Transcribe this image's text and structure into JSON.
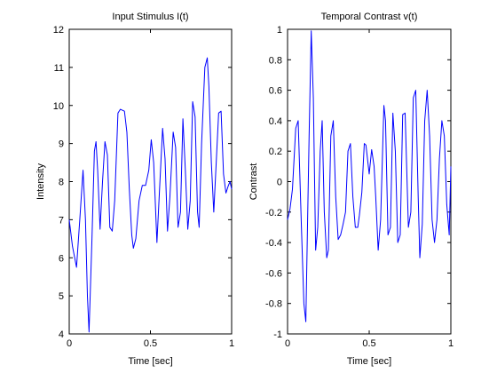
{
  "figure": {
    "background": "#ffffff",
    "line_color": "#0000ff"
  },
  "chart_data": [
    {
      "type": "line",
      "title": "Input Stimulus I(t)",
      "xlabel": "Time [sec]",
      "ylabel": "Intensity",
      "xlim": [
        0,
        1
      ],
      "ylim": [
        4,
        12
      ],
      "xticks": [
        0,
        0.5,
        1
      ],
      "xtick_labels": [
        "0",
        "0.5",
        "1"
      ],
      "yticks": [
        4,
        5,
        6,
        7,
        8,
        9,
        10,
        11,
        12
      ],
      "ytick_labels": [
        "4",
        "5",
        "6",
        "7",
        "8",
        "9",
        "10",
        "11",
        "12"
      ],
      "grid": false,
      "series": [
        {
          "color": "#0000ff",
          "x": [
            0,
            0.02,
            0.045,
            0.065,
            0.085,
            0.1,
            0.112,
            0.122,
            0.14,
            0.155,
            0.165,
            0.175,
            0.19,
            0.205,
            0.22,
            0.235,
            0.25,
            0.265,
            0.28,
            0.3,
            0.315,
            0.34,
            0.355,
            0.37,
            0.385,
            0.395,
            0.41,
            0.43,
            0.45,
            0.47,
            0.49,
            0.505,
            0.52,
            0.54,
            0.555,
            0.575,
            0.59,
            0.605,
            0.62,
            0.64,
            0.655,
            0.67,
            0.685,
            0.7,
            0.715,
            0.73,
            0.745,
            0.76,
            0.775,
            0.79,
            0.8,
            0.815,
            0.835,
            0.85,
            0.86,
            0.875,
            0.89,
            0.905,
            0.92,
            0.935,
            0.95,
            0.965,
            0.98,
            0.99,
            1
          ],
          "y": [
            7.0,
            6.3,
            5.75,
            7.0,
            8.3,
            7.0,
            5.0,
            4.05,
            6.5,
            8.8,
            9.05,
            8.3,
            6.75,
            8.0,
            9.05,
            8.7,
            6.8,
            6.7,
            7.5,
            9.8,
            9.9,
            9.85,
            9.3,
            7.8,
            6.6,
            6.25,
            6.5,
            7.5,
            7.9,
            7.9,
            8.3,
            9.1,
            8.5,
            6.4,
            7.7,
            9.4,
            8.6,
            6.7,
            7.6,
            9.3,
            8.9,
            6.8,
            7.2,
            9.65,
            8.3,
            6.75,
            7.5,
            10.1,
            9.7,
            7.2,
            6.8,
            9.0,
            11.0,
            11.25,
            10.5,
            8.5,
            7.2,
            8.5,
            9.8,
            9.85,
            8.2,
            7.7,
            7.9,
            8.0,
            7.8
          ]
        }
      ]
    },
    {
      "type": "line",
      "title": "Temporal Contrast v(t)",
      "xlabel": "Time [sec]",
      "ylabel": "Contrast",
      "xlim": [
        0,
        1
      ],
      "ylim": [
        -1,
        1
      ],
      "xticks": [
        0,
        0.5,
        1
      ],
      "xtick_labels": [
        "0",
        "0.5",
        "1"
      ],
      "yticks": [
        -1,
        -0.8,
        -0.6,
        -0.4,
        -0.2,
        0,
        0.2,
        0.4,
        0.6,
        0.8,
        1
      ],
      "ytick_labels": [
        "-1",
        "-0.8",
        "-0.6",
        "-0.4",
        "-0.2",
        "0",
        "0.2",
        "0.4",
        "0.6",
        "0.8",
        "1"
      ],
      "grid": false,
      "series": [
        {
          "color": "#0000ff",
          "x": [
            0,
            0.015,
            0.03,
            0.05,
            0.065,
            0.085,
            0.1,
            0.112,
            0.122,
            0.132,
            0.145,
            0.158,
            0.172,
            0.185,
            0.2,
            0.212,
            0.225,
            0.24,
            0.25,
            0.265,
            0.28,
            0.295,
            0.31,
            0.325,
            0.34,
            0.355,
            0.37,
            0.385,
            0.4,
            0.415,
            0.43,
            0.44,
            0.455,
            0.47,
            0.48,
            0.5,
            0.515,
            0.53,
            0.54,
            0.555,
            0.57,
            0.59,
            0.6,
            0.615,
            0.63,
            0.645,
            0.66,
            0.675,
            0.69,
            0.705,
            0.72,
            0.74,
            0.755,
            0.77,
            0.785,
            0.8,
            0.81,
            0.825,
            0.84,
            0.855,
            0.87,
            0.885,
            0.9,
            0.915,
            0.93,
            0.945,
            0.96,
            0.975,
            0.99,
            1
          ],
          "y": [
            -0.25,
            -0.18,
            -0.05,
            0.35,
            0.4,
            -0.3,
            -0.8,
            -0.92,
            -0.3,
            0.3,
            0.99,
            0.55,
            -0.45,
            -0.3,
            0.2,
            0.4,
            -0.2,
            -0.5,
            -0.45,
            0.3,
            0.4,
            -0.1,
            -0.38,
            -0.35,
            -0.28,
            -0.2,
            0.2,
            0.25,
            -0.1,
            -0.3,
            -0.3,
            -0.22,
            -0.07,
            0.25,
            0.24,
            0.05,
            0.21,
            0.1,
            -0.1,
            -0.45,
            -0.25,
            0.5,
            0.4,
            -0.35,
            -0.3,
            0.45,
            0.2,
            -0.4,
            -0.35,
            0.44,
            0.45,
            -0.3,
            -0.2,
            0.55,
            0.6,
            -0.1,
            -0.5,
            -0.28,
            0.4,
            0.6,
            0.3,
            -0.25,
            -0.4,
            -0.25,
            0.15,
            0.4,
            0.3,
            -0.15,
            -0.35,
            0.1
          ]
        }
      ]
    }
  ]
}
